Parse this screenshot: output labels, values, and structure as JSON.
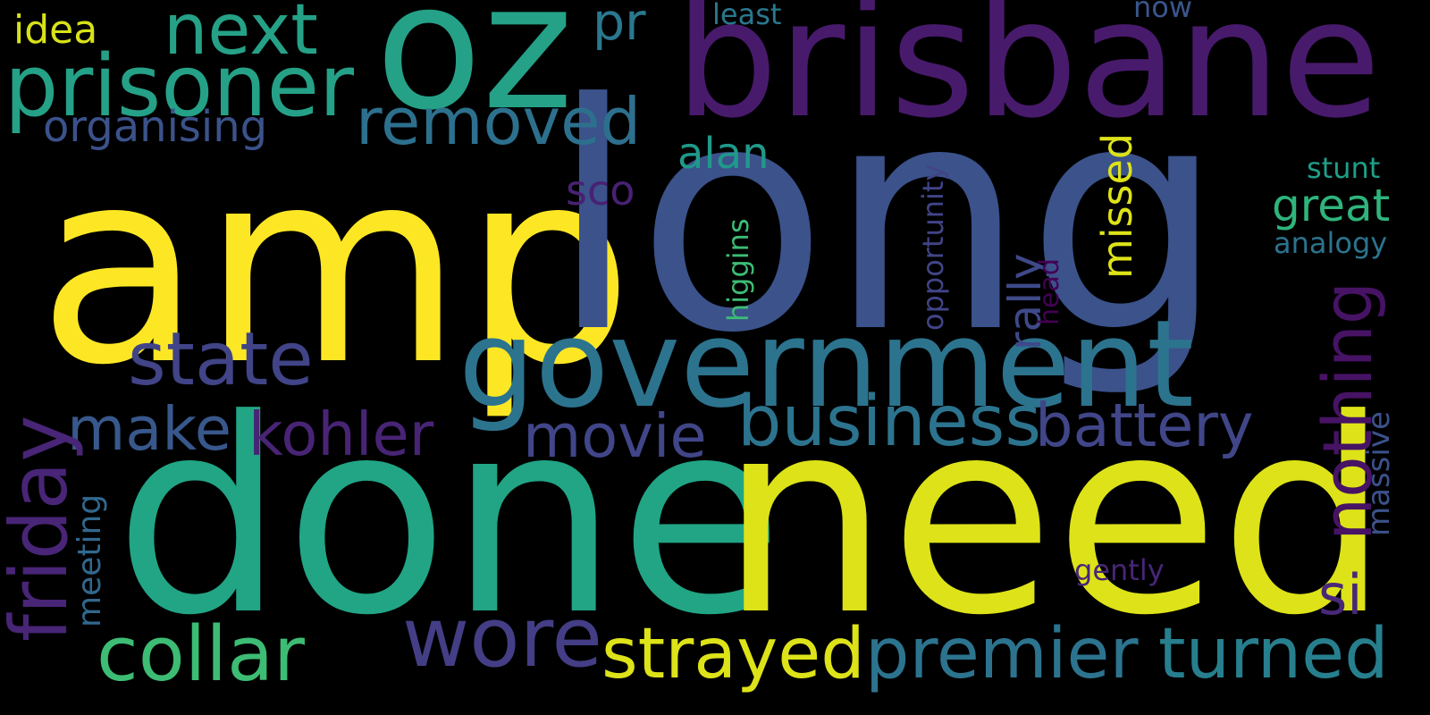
{
  "words": [
    {
      "text": "amp",
      "color": "#fde725"
    },
    {
      "text": "long",
      "color": "#3b528b"
    },
    {
      "text": "done",
      "color": "#21a585"
    },
    {
      "text": "need",
      "color": "#dde318"
    },
    {
      "text": "brisbane",
      "color": "#481a6c"
    },
    {
      "text": "oz",
      "color": "#25a187"
    },
    {
      "text": "government",
      "color": "#2c738e"
    },
    {
      "text": "prisoner",
      "color": "#25a187"
    },
    {
      "text": "next",
      "color": "#25a187"
    },
    {
      "text": "state",
      "color": "#414487"
    },
    {
      "text": "collar",
      "color": "#3dbc74"
    },
    {
      "text": "wore",
      "color": "#433e85"
    },
    {
      "text": "strayed",
      "color": "#dde318"
    },
    {
      "text": "premier",
      "color": "#2c738e"
    },
    {
      "text": "turned",
      "color": "#277f8e"
    },
    {
      "text": "business",
      "color": "#2c738e"
    },
    {
      "text": "battery",
      "color": "#404688"
    },
    {
      "text": "removed",
      "color": "#2d708e"
    },
    {
      "text": "movie",
      "color": "#404688"
    },
    {
      "text": "kohler",
      "color": "#482475"
    },
    {
      "text": "make",
      "color": "#38588c"
    },
    {
      "text": "friday",
      "color": "#482576"
    },
    {
      "text": "nothing",
      "color": "#471365"
    },
    {
      "text": "pr",
      "color": "#2a788e"
    },
    {
      "text": "organising",
      "color": "#3b528b"
    },
    {
      "text": "alan",
      "color": "#1f9a8a"
    },
    {
      "text": "sco",
      "color": "#482173"
    },
    {
      "text": "great",
      "color": "#2fb47c"
    },
    {
      "text": "missed",
      "color": "#dde318"
    },
    {
      "text": "rally",
      "color": "#3e4989"
    },
    {
      "text": "si",
      "color": "#482878"
    },
    {
      "text": "idea",
      "color": "#d8e219"
    },
    {
      "text": "least",
      "color": "#2a788e"
    },
    {
      "text": "now",
      "color": "#39568c"
    },
    {
      "text": "stunt",
      "color": "#1f9e89"
    },
    {
      "text": "analogy",
      "color": "#2c738e"
    },
    {
      "text": "massive",
      "color": "#3b528b"
    },
    {
      "text": "higgins",
      "color": "#3dbc74"
    },
    {
      "text": "opportunity",
      "color": "#414487"
    },
    {
      "text": "head",
      "color": "#440154"
    },
    {
      "text": "meeting",
      "color": "#31688e"
    },
    {
      "text": "gently",
      "color": "#482677"
    }
  ]
}
